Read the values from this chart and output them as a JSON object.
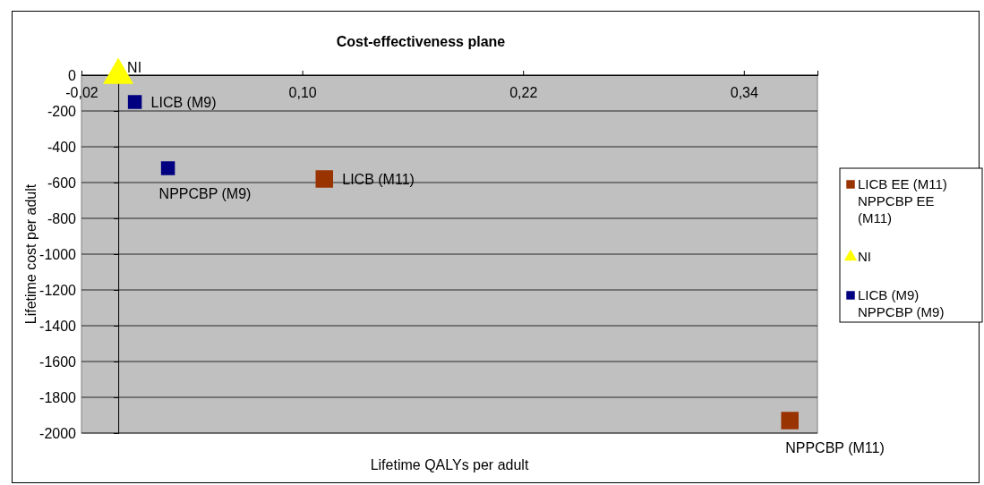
{
  "chart_data": {
    "type": "scatter",
    "title": "Cost-effectiveness plane",
    "xlabel": "Lifetime QALYs per adult",
    "ylabel": "Lifetime cost per adult",
    "series": [
      {
        "name": "LICB EE (M11) NPPCBP EE (M11)",
        "color": "#993300",
        "marker": "square",
        "x": [
          0.112,
          0.365
        ],
        "values": [
          -580,
          -1930
        ]
      },
      {
        "name": "NI",
        "color": "#ffff00",
        "marker": "triangle",
        "x": [
          0
        ],
        "values": [
          0
        ]
      },
      {
        "name": "LICB (M9) NPPCBP (M9)",
        "color": "#000080",
        "marker": "square",
        "x": [
          0.009,
          0.027
        ],
        "values": [
          -150,
          -520
        ]
      }
    ],
    "xlim": [
      -0.02,
      0.38
    ],
    "xticks": [
      {
        "value": -0.02,
        "label": "-0,02"
      },
      {
        "value": 0.1,
        "label": "0,10"
      },
      {
        "value": 0.22,
        "label": "0,22"
      },
      {
        "value": 0.34,
        "label": "0,34"
      }
    ],
    "ylim": [
      -2000,
      0
    ],
    "yticks": [
      -2000,
      -1800,
      -1600,
      -1400,
      -1200,
      -1000,
      -800,
      -600,
      -400,
      -200,
      0
    ],
    "grid": "y",
    "legend": "right",
    "annotations": [
      {
        "text": "NI",
        "x": 0,
        "y": 0
      },
      {
        "text": "LICB (M9)",
        "x": 0.009,
        "y": -150
      },
      {
        "text": "NPPCBP (M9)",
        "x": 0.027,
        "y": -520
      },
      {
        "text": "LICB (M11)",
        "x": 0.112,
        "y": -580
      },
      {
        "text": "NPPCBP (M11)",
        "x": 0.365,
        "y": -1930
      }
    ]
  }
}
